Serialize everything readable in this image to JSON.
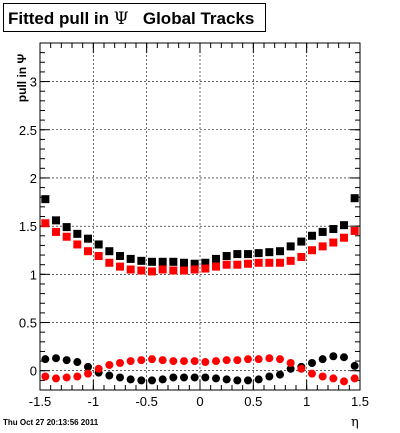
{
  "header": {
    "title_pre": "Fitted pull in ",
    "title_psi": "Ψ",
    "title_post": "   Global Tracks"
  },
  "footer": {
    "timestamp": "Thu Oct 27 20:13:56 2011"
  },
  "chart_data": {
    "type": "scatter",
    "title": "Fitted pull in Ψ   Global Tracks",
    "xlabel": "η",
    "ylabel": "pull in Ψ",
    "xlim": [
      -1.5,
      1.5
    ],
    "ylim": [
      -0.2,
      3.4
    ],
    "grid": true,
    "x_ticks": [
      -1.5,
      -1,
      -0.5,
      0,
      0.5,
      1,
      1.5
    ],
    "x_tick_labels": [
      "-1.5",
      "-1",
      "-0.5",
      "0",
      "0.5",
      "1",
      "1.5"
    ],
    "y_ticks": [
      0,
      0.5,
      1,
      1.5,
      2,
      2.5,
      3
    ],
    "y_tick_labels": [
      "0",
      "0.5",
      "1",
      "1.5",
      "2",
      "2.5",
      "3"
    ],
    "series": [
      {
        "color": "#000000",
        "marker": "square",
        "x": [
          -1.45,
          -1.35,
          -1.25,
          -1.15,
          -1.05,
          -0.95,
          -0.85,
          -0.75,
          -0.65,
          -0.55,
          -0.45,
          -0.35,
          -0.25,
          -0.15,
          -0.05,
          0.05,
          0.15,
          0.25,
          0.35,
          0.45,
          0.55,
          0.65,
          0.75,
          0.85,
          0.95,
          1.05,
          1.15,
          1.25,
          1.35,
          1.45
        ],
        "values": [
          1.78,
          1.56,
          1.49,
          1.42,
          1.37,
          1.31,
          1.24,
          1.19,
          1.16,
          1.14,
          1.13,
          1.13,
          1.13,
          1.12,
          1.11,
          1.12,
          1.16,
          1.19,
          1.21,
          1.21,
          1.22,
          1.23,
          1.24,
          1.29,
          1.34,
          1.4,
          1.44,
          1.47,
          1.51,
          1.79
        ]
      },
      {
        "color": "#ff0000",
        "marker": "square",
        "x": [
          -1.45,
          -1.35,
          -1.25,
          -1.15,
          -1.05,
          -0.95,
          -0.85,
          -0.75,
          -0.65,
          -0.55,
          -0.45,
          -0.35,
          -0.25,
          -0.15,
          -0.05,
          0.05,
          0.15,
          0.25,
          0.35,
          0.45,
          0.55,
          0.65,
          0.75,
          0.85,
          0.95,
          1.05,
          1.15,
          1.25,
          1.35,
          1.45
        ],
        "values": [
          1.53,
          1.44,
          1.39,
          1.31,
          1.24,
          1.19,
          1.12,
          1.08,
          1.05,
          1.04,
          1.03,
          1.05,
          1.04,
          1.04,
          1.05,
          1.06,
          1.08,
          1.1,
          1.1,
          1.11,
          1.12,
          1.12,
          1.12,
          1.14,
          1.18,
          1.25,
          1.29,
          1.33,
          1.38,
          1.45
        ]
      },
      {
        "color": "#000000",
        "marker": "circle",
        "x": [
          -1.45,
          -1.35,
          -1.25,
          -1.15,
          -1.05,
          -0.95,
          -0.85,
          -0.75,
          -0.65,
          -0.55,
          -0.45,
          -0.35,
          -0.25,
          -0.15,
          -0.05,
          0.05,
          0.15,
          0.25,
          0.35,
          0.45,
          0.55,
          0.65,
          0.75,
          0.85,
          0.95,
          1.05,
          1.15,
          1.25,
          1.35,
          1.45
        ],
        "values": [
          0.12,
          0.13,
          0.11,
          0.09,
          0.04,
          -0.02,
          -0.05,
          -0.07,
          -0.09,
          -0.1,
          -0.1,
          -0.09,
          -0.07,
          -0.07,
          -0.07,
          -0.07,
          -0.08,
          -0.09,
          -0.1,
          -0.1,
          -0.09,
          -0.06,
          -0.04,
          0.02,
          0.04,
          0.08,
          0.12,
          0.15,
          0.14,
          0.05
        ]
      },
      {
        "color": "#ff0000",
        "marker": "circle",
        "x": [
          -1.45,
          -1.35,
          -1.25,
          -1.15,
          -1.05,
          -0.95,
          -0.85,
          -0.75,
          -0.65,
          -0.55,
          -0.45,
          -0.35,
          -0.25,
          -0.15,
          -0.05,
          0.05,
          0.15,
          0.25,
          0.35,
          0.45,
          0.55,
          0.65,
          0.75,
          0.85,
          0.95,
          1.05,
          1.15,
          1.25,
          1.35,
          1.45
        ],
        "values": [
          -0.06,
          -0.08,
          -0.07,
          -0.06,
          -0.03,
          0.02,
          0.06,
          0.08,
          0.1,
          0.11,
          0.12,
          0.11,
          0.1,
          0.1,
          0.1,
          0.09,
          0.1,
          0.11,
          0.11,
          0.12,
          0.12,
          0.13,
          0.12,
          0.08,
          0.02,
          -0.03,
          -0.06,
          -0.08,
          -0.11,
          -0.08
        ]
      }
    ]
  }
}
